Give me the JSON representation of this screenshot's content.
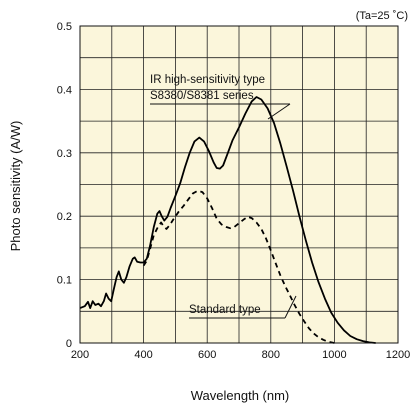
{
  "chart_data": {
    "type": "line",
    "title": "",
    "condition": "(Ta=25 ˚C)",
    "xlabel": "Wavelength (nm)",
    "ylabel": "Photo sensitivity (A/W)",
    "xlim": [
      200,
      1200
    ],
    "ylim": [
      0,
      0.5
    ],
    "xticks": [
      "200",
      "400",
      "600",
      "800",
      "1000",
      "1200"
    ],
    "yticks": [
      "0",
      "0.1",
      "0.2",
      "0.3",
      "0.4",
      "0.5"
    ],
    "grid": true,
    "background": "#fbf6db",
    "series": [
      {
        "name": "IR high-sensitivity type S8380/S8381 series",
        "label_lines": [
          "IR high-sensitivity type",
          "S8380/S8381 series"
        ],
        "style": "solid",
        "color": "#000000",
        "points": [
          [
            200,
            0.055
          ],
          [
            215,
            0.058
          ],
          [
            225,
            0.065
          ],
          [
            232,
            0.055
          ],
          [
            240,
            0.066
          ],
          [
            248,
            0.06
          ],
          [
            258,
            0.062
          ],
          [
            266,
            0.058
          ],
          [
            275,
            0.066
          ],
          [
            282,
            0.078
          ],
          [
            290,
            0.07
          ],
          [
            298,
            0.066
          ],
          [
            306,
            0.084
          ],
          [
            315,
            0.104
          ],
          [
            322,
            0.113
          ],
          [
            330,
            0.1
          ],
          [
            338,
            0.095
          ],
          [
            346,
            0.104
          ],
          [
            356,
            0.121
          ],
          [
            366,
            0.133
          ],
          [
            372,
            0.135
          ],
          [
            380,
            0.128
          ],
          [
            390,
            0.127
          ],
          [
            400,
            0.127
          ],
          [
            410,
            0.133
          ],
          [
            420,
            0.153
          ],
          [
            432,
            0.183
          ],
          [
            443,
            0.204
          ],
          [
            450,
            0.208
          ],
          [
            457,
            0.2
          ],
          [
            465,
            0.193
          ],
          [
            475,
            0.199
          ],
          [
            485,
            0.213
          ],
          [
            500,
            0.232
          ],
          [
            515,
            0.252
          ],
          [
            530,
            0.277
          ],
          [
            545,
            0.3
          ],
          [
            560,
            0.318
          ],
          [
            575,
            0.324
          ],
          [
            590,
            0.318
          ],
          [
            605,
            0.303
          ],
          [
            620,
            0.285
          ],
          [
            630,
            0.276
          ],
          [
            640,
            0.275
          ],
          [
            650,
            0.28
          ],
          [
            665,
            0.3
          ],
          [
            680,
            0.32
          ],
          [
            700,
            0.34
          ],
          [
            720,
            0.362
          ],
          [
            740,
            0.381
          ],
          [
            755,
            0.388
          ],
          [
            770,
            0.384
          ],
          [
            790,
            0.37
          ],
          [
            810,
            0.347
          ],
          [
            830,
            0.315
          ],
          [
            850,
            0.278
          ],
          [
            870,
            0.24
          ],
          [
            890,
            0.2
          ],
          [
            910,
            0.162
          ],
          [
            930,
            0.127
          ],
          [
            950,
            0.096
          ],
          [
            970,
            0.07
          ],
          [
            990,
            0.048
          ],
          [
            1010,
            0.032
          ],
          [
            1030,
            0.02
          ],
          [
            1050,
            0.011
          ],
          [
            1070,
            0.006
          ],
          [
            1090,
            0.003
          ],
          [
            1110,
            0.001
          ],
          [
            1130,
            0.0
          ]
        ]
      },
      {
        "name": "Standard type",
        "label_lines": [
          "Standard type"
        ],
        "style": "dashed",
        "color": "#000000",
        "points": [
          [
            400,
            0.122
          ],
          [
            410,
            0.13
          ],
          [
            420,
            0.148
          ],
          [
            432,
            0.17
          ],
          [
            445,
            0.183
          ],
          [
            455,
            0.19
          ],
          [
            463,
            0.184
          ],
          [
            472,
            0.18
          ],
          [
            482,
            0.186
          ],
          [
            495,
            0.196
          ],
          [
            510,
            0.207
          ],
          [
            525,
            0.216
          ],
          [
            540,
            0.226
          ],
          [
            555,
            0.236
          ],
          [
            570,
            0.24
          ],
          [
            585,
            0.238
          ],
          [
            600,
            0.228
          ],
          [
            615,
            0.213
          ],
          [
            630,
            0.196
          ],
          [
            645,
            0.187
          ],
          [
            660,
            0.183
          ],
          [
            672,
            0.181
          ],
          [
            685,
            0.183
          ],
          [
            700,
            0.189
          ],
          [
            715,
            0.195
          ],
          [
            728,
            0.199
          ],
          [
            740,
            0.197
          ],
          [
            755,
            0.19
          ],
          [
            770,
            0.18
          ],
          [
            785,
            0.165
          ],
          [
            800,
            0.146
          ],
          [
            815,
            0.126
          ],
          [
            830,
            0.107
          ],
          [
            845,
            0.09
          ],
          [
            860,
            0.075
          ],
          [
            875,
            0.06
          ],
          [
            890,
            0.046
          ],
          [
            905,
            0.034
          ],
          [
            920,
            0.023
          ],
          [
            935,
            0.015
          ],
          [
            950,
            0.009
          ],
          [
            965,
            0.005
          ],
          [
            980,
            0.002
          ],
          [
            1000,
            0.0
          ]
        ]
      }
    ]
  }
}
